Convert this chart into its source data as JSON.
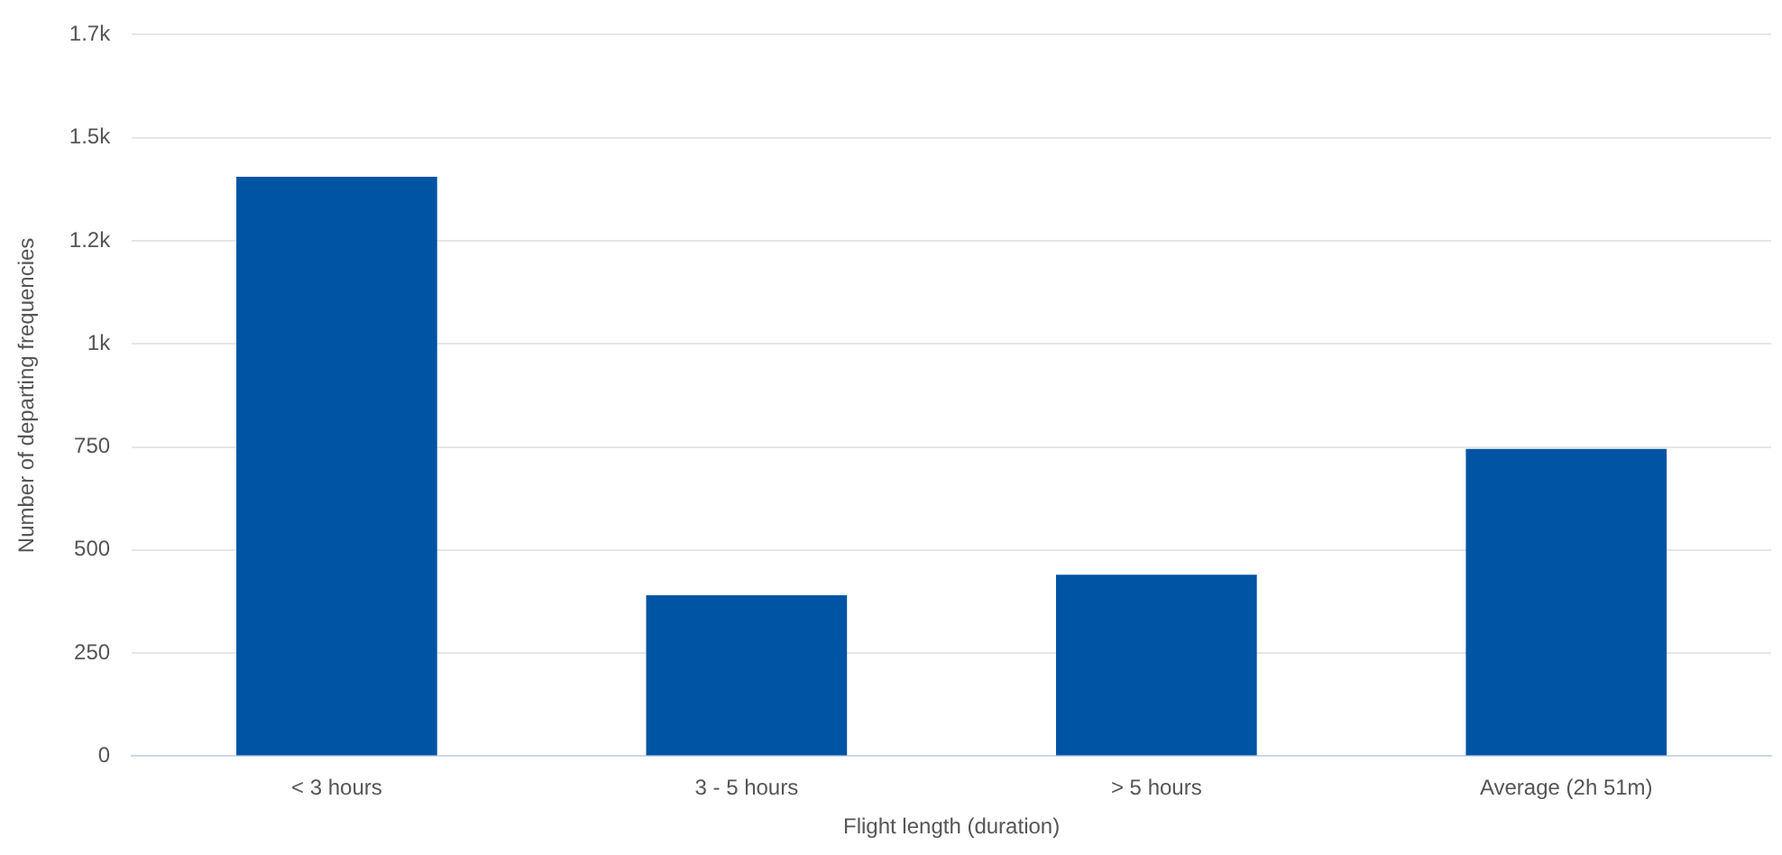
{
  "chart_data": {
    "type": "bar",
    "xlabel": "Flight length (duration)",
    "ylabel": "Number of departing frequencies",
    "categories": [
      "< 3 hours",
      "3 - 5 hours",
      "> 5 hours",
      "Average (2h 51m)"
    ],
    "values": [
      1405,
      390,
      440,
      745
    ],
    "color": "#0054a4",
    "ylim": [
      0,
      1750
    ],
    "yticks": [
      0,
      250,
      500,
      750,
      {
        "value": 1000,
        "label": "1k"
      },
      {
        "value": 1250,
        "label": "1.2k"
      },
      {
        "value": 1500,
        "label": "1.5k"
      },
      {
        "value": 1750,
        "label": "1.7k"
      }
    ],
    "grid": "y"
  }
}
